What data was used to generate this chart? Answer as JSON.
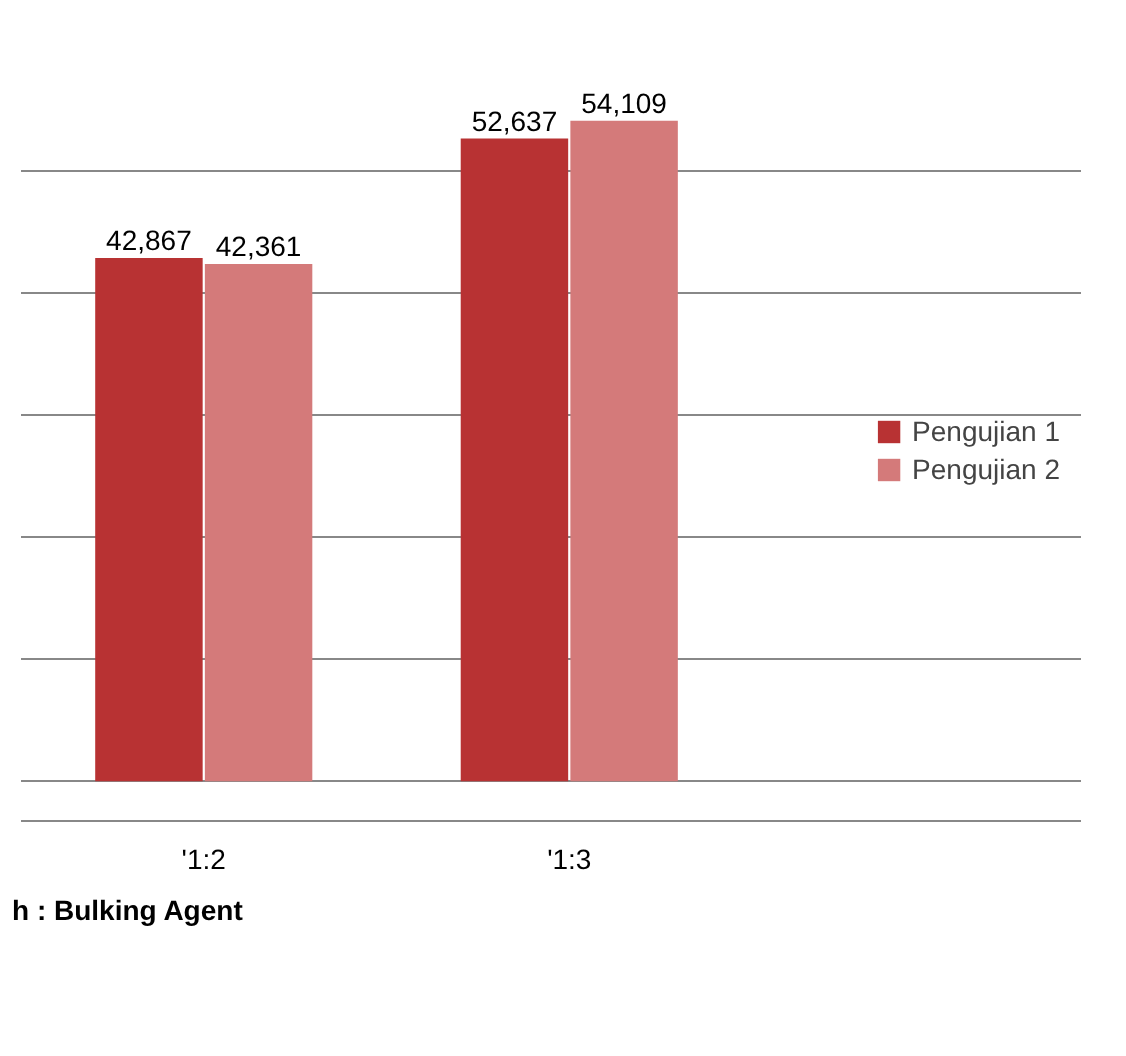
{
  "chart_data": {
    "type": "bar",
    "categories": [
      "'1:2",
      "'1:3"
    ],
    "series": [
      {
        "name": "Pengujian 1",
        "color": "#b83233",
        "values": [
          42867,
          52637
        ],
        "value_labels": [
          "42,867",
          "52,637"
        ]
      },
      {
        "name": "Pengujian 2",
        "color": "#d47a7a",
        "values": [
          42361,
          54109
        ],
        "value_labels": [
          "42,361",
          "54,109"
        ]
      }
    ],
    "grid": "y",
    "legend": "right",
    "tick_labels": "x",
    "annotations": [
      "h : Bulking Agent"
    ]
  }
}
